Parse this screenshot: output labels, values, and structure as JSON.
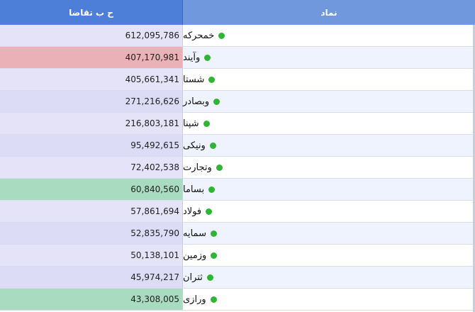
{
  "header": {
    "value_label": "ح ب تقاضا",
    "symbol_label": "نماد"
  },
  "colors": {
    "default_value_bg": "#e4e3f8",
    "alt_value_bg": "#dcdcf6",
    "red_value_bg": "#eab1b7",
    "green_value_bg": "#a8dbbf",
    "symbol_bg_even": "#ffffff",
    "symbol_bg_odd": "#eef3fd",
    "status_dot": "#2fb534"
  },
  "rows": [
    {
      "symbol": "خمحرکه",
      "value": "612,095,786",
      "highlight": "none"
    },
    {
      "symbol": "وآیند",
      "value": "407,170,981",
      "highlight": "red"
    },
    {
      "symbol": "شستا",
      "value": "405,661,341",
      "highlight": "none"
    },
    {
      "symbol": "وبصادر",
      "value": "271,216,626",
      "highlight": "none"
    },
    {
      "symbol": "شپنا",
      "value": "216,803,181",
      "highlight": "none"
    },
    {
      "symbol": "ونیکی",
      "value": "95,492,615",
      "highlight": "none"
    },
    {
      "symbol": "وتجارت",
      "value": "72,402,538",
      "highlight": "none"
    },
    {
      "symbol": "بساما",
      "value": "60,840,560",
      "highlight": "green"
    },
    {
      "symbol": "فولاد",
      "value": "57,861,694",
      "highlight": "none"
    },
    {
      "symbol": "سمایه",
      "value": "52,835,790",
      "highlight": "none"
    },
    {
      "symbol": "وزمین",
      "value": "50,138,101",
      "highlight": "none"
    },
    {
      "symbol": "ثتران",
      "value": "45,974,217",
      "highlight": "none"
    },
    {
      "symbol": "ورازی",
      "value": "43,308,005",
      "highlight": "green"
    }
  ]
}
